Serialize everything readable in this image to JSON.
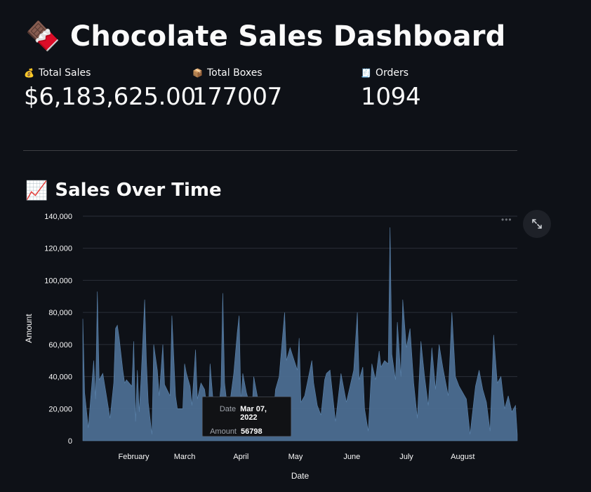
{
  "header": {
    "emoji": "🍫",
    "title": "Chocolate Sales Dashboard"
  },
  "metrics": [
    {
      "icon": "💰",
      "label": "Total Sales",
      "value": "$6,183,625.00"
    },
    {
      "icon": "📦",
      "label": "Total Boxes",
      "value": "177007"
    },
    {
      "icon": "🧾",
      "label": "Orders",
      "value": "1094"
    }
  ],
  "section": {
    "emoji": "📈",
    "title": "Sales Over Time"
  },
  "chart_toolbar": {
    "more": "•••"
  },
  "tooltip": {
    "date_key": "Date",
    "date_val": "Mar 07, 2022",
    "amount_key": "Amount",
    "amount_val": "56798"
  },
  "colors": {
    "background": "#0e1117",
    "area_fill": "#4c6e91",
    "area_stroke": "#5b84ad",
    "grid": "#2b2f38",
    "text": "#fafafa"
  },
  "chart_data": {
    "type": "area",
    "xlabel": "Date",
    "ylabel": "Amount",
    "ylim": [
      0,
      140000
    ],
    "yticks": [
      0,
      20000,
      40000,
      60000,
      80000,
      100000,
      120000,
      140000
    ],
    "ytick_labels": [
      "0",
      "20,000",
      "40,000",
      "60,000",
      "80,000",
      "100,000",
      "120,000",
      "140,000"
    ],
    "xticks": [
      {
        "label": "February",
        "date": "2022-02-01"
      },
      {
        "label": "March",
        "date": "2022-03-01"
      },
      {
        "label": "April",
        "date": "2022-04-01"
      },
      {
        "label": "May",
        "date": "2022-05-01"
      },
      {
        "label": "June",
        "date": "2022-06-01"
      },
      {
        "label": "July",
        "date": "2022-07-01"
      },
      {
        "label": "August",
        "date": "2022-08-01"
      }
    ],
    "x_range": [
      "2022-01-04",
      "2022-08-31"
    ],
    "grid": true,
    "series": [
      {
        "values": [
          [
            "2022-01-04",
            76000
          ],
          [
            "2022-01-05",
            30000
          ],
          [
            "2022-01-07",
            8000
          ],
          [
            "2022-01-10",
            50000
          ],
          [
            "2022-01-11",
            26000
          ],
          [
            "2022-01-12",
            93000
          ],
          [
            "2022-01-13",
            38000
          ],
          [
            "2022-01-15",
            42000
          ],
          [
            "2022-01-17",
            28000
          ],
          [
            "2022-01-19",
            14000
          ],
          [
            "2022-01-21",
            36000
          ],
          [
            "2022-01-22",
            70000
          ],
          [
            "2022-01-23",
            72000
          ],
          [
            "2022-01-24",
            64000
          ],
          [
            "2022-01-26",
            44000
          ],
          [
            "2022-01-27",
            36000
          ],
          [
            "2022-01-28",
            38000
          ],
          [
            "2022-01-31",
            34000
          ],
          [
            "2022-02-01",
            62000
          ],
          [
            "2022-02-02",
            12000
          ],
          [
            "2022-02-03",
            44000
          ],
          [
            "2022-02-04",
            18000
          ],
          [
            "2022-02-05",
            38000
          ],
          [
            "2022-02-07",
            88000
          ],
          [
            "2022-02-08",
            50000
          ],
          [
            "2022-02-09",
            24000
          ],
          [
            "2022-02-11",
            4000
          ],
          [
            "2022-02-12",
            60000
          ],
          [
            "2022-02-14",
            44000
          ],
          [
            "2022-02-15",
            28000
          ],
          [
            "2022-02-17",
            60000
          ],
          [
            "2022-02-18",
            35000
          ],
          [
            "2022-02-21",
            28000
          ],
          [
            "2022-02-22",
            78000
          ],
          [
            "2022-02-24",
            28000
          ],
          [
            "2022-02-25",
            20000
          ],
          [
            "2022-02-28",
            20000
          ],
          [
            "2022-03-01",
            48000
          ],
          [
            "2022-03-02",
            42000
          ],
          [
            "2022-03-04",
            34000
          ],
          [
            "2022-03-05",
            22000
          ],
          [
            "2022-03-07",
            56798
          ],
          [
            "2022-03-08",
            26000
          ],
          [
            "2022-03-10",
            36000
          ],
          [
            "2022-03-12",
            32000
          ],
          [
            "2022-03-14",
            14000
          ],
          [
            "2022-03-15",
            48000
          ],
          [
            "2022-03-17",
            20000
          ],
          [
            "2022-03-19",
            12000
          ],
          [
            "2022-03-21",
            34000
          ],
          [
            "2022-03-22",
            92000
          ],
          [
            "2022-03-23",
            36000
          ],
          [
            "2022-03-25",
            16000
          ],
          [
            "2022-03-28",
            42000
          ],
          [
            "2022-03-30",
            68000
          ],
          [
            "2022-03-31",
            78000
          ],
          [
            "2022-04-01",
            24000
          ],
          [
            "2022-04-02",
            42000
          ],
          [
            "2022-04-04",
            30000
          ],
          [
            "2022-04-05",
            26000
          ],
          [
            "2022-04-07",
            18000
          ],
          [
            "2022-04-08",
            40000
          ],
          [
            "2022-04-11",
            22000
          ],
          [
            "2022-04-13",
            8000
          ],
          [
            "2022-04-15",
            26000
          ],
          [
            "2022-04-17",
            22000
          ],
          [
            "2022-04-19",
            18000
          ],
          [
            "2022-04-20",
            32000
          ],
          [
            "2022-04-22",
            40000
          ],
          [
            "2022-04-25",
            80000
          ],
          [
            "2022-04-26",
            50000
          ],
          [
            "2022-04-28",
            58000
          ],
          [
            "2022-05-02",
            44000
          ],
          [
            "2022-05-03",
            64000
          ],
          [
            "2022-05-04",
            24000
          ],
          [
            "2022-05-06",
            28000
          ],
          [
            "2022-05-10",
            50000
          ],
          [
            "2022-05-11",
            36000
          ],
          [
            "2022-05-13",
            22000
          ],
          [
            "2022-05-15",
            16000
          ],
          [
            "2022-05-17",
            38000
          ],
          [
            "2022-05-18",
            42000
          ],
          [
            "2022-05-20",
            44000
          ],
          [
            "2022-05-23",
            12000
          ],
          [
            "2022-05-25",
            32000
          ],
          [
            "2022-05-26",
            42000
          ],
          [
            "2022-05-29",
            24000
          ],
          [
            "2022-05-31",
            34000
          ],
          [
            "2022-06-02",
            44000
          ],
          [
            "2022-06-04",
            80000
          ],
          [
            "2022-06-05",
            38000
          ],
          [
            "2022-06-07",
            46000
          ],
          [
            "2022-06-08",
            20000
          ],
          [
            "2022-06-10",
            6000
          ],
          [
            "2022-06-12",
            48000
          ],
          [
            "2022-06-14",
            38000
          ],
          [
            "2022-06-16",
            56000
          ],
          [
            "2022-06-17",
            46000
          ],
          [
            "2022-06-19",
            50000
          ],
          [
            "2022-06-21",
            48000
          ],
          [
            "2022-06-22",
            133000
          ],
          [
            "2022-06-23",
            54000
          ],
          [
            "2022-06-25",
            38000
          ],
          [
            "2022-06-26",
            74000
          ],
          [
            "2022-06-28",
            40000
          ],
          [
            "2022-06-29",
            88000
          ],
          [
            "2022-07-01",
            58000
          ],
          [
            "2022-07-03",
            70000
          ],
          [
            "2022-07-05",
            36000
          ],
          [
            "2022-07-07",
            14000
          ],
          [
            "2022-07-09",
            62000
          ],
          [
            "2022-07-11",
            40000
          ],
          [
            "2022-07-13",
            22000
          ],
          [
            "2022-07-15",
            58000
          ],
          [
            "2022-07-17",
            32000
          ],
          [
            "2022-07-19",
            60000
          ],
          [
            "2022-07-21",
            46000
          ],
          [
            "2022-07-24",
            28000
          ],
          [
            "2022-07-26",
            80000
          ],
          [
            "2022-07-28",
            40000
          ],
          [
            "2022-07-30",
            34000
          ],
          [
            "2022-08-03",
            26000
          ],
          [
            "2022-08-05",
            4000
          ],
          [
            "2022-08-08",
            34000
          ],
          [
            "2022-08-10",
            44000
          ],
          [
            "2022-08-12",
            32000
          ],
          [
            "2022-08-14",
            24000
          ],
          [
            "2022-08-16",
            6000
          ],
          [
            "2022-08-18",
            66000
          ],
          [
            "2022-08-20",
            36000
          ],
          [
            "2022-08-22",
            40000
          ],
          [
            "2022-08-24",
            20000
          ],
          [
            "2022-08-26",
            28000
          ],
          [
            "2022-08-28",
            18000
          ],
          [
            "2022-08-30",
            22000
          ],
          [
            "2022-08-31",
            4000
          ]
        ]
      }
    ]
  }
}
